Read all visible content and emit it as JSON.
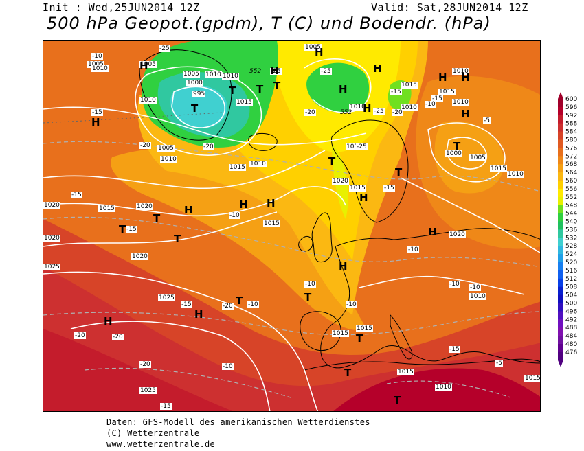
{
  "header": {
    "init": "Init : Wed,25JUN2014 12Z",
    "valid": "Valid: Sat,28JUN2014 12Z",
    "title": "500 hPa Geopot.(gpdm), T (C) und Bodendr. (hPa)"
  },
  "legend": {
    "values": [
      "600",
      "596",
      "592",
      "588",
      "584",
      "580",
      "576",
      "572",
      "568",
      "564",
      "560",
      "556",
      "552",
      "548",
      "544",
      "540",
      "536",
      "532",
      "528",
      "524",
      "520",
      "516",
      "512",
      "508",
      "504",
      "500",
      "496",
      "492",
      "488",
      "484",
      "480",
      "476"
    ],
    "colors": [
      "#a0002a",
      "#b5002a",
      "#c41c2c",
      "#cd3030",
      "#d74428",
      "#e05a22",
      "#e8701c",
      "#ef8818",
      "#f5a014",
      "#fbb812",
      "#ffd000",
      "#ffea00",
      "#e8f000",
      "#70e020",
      "#30d040",
      "#20c060",
      "#30c8a0",
      "#40d0d0",
      "#30b8e0",
      "#20a0e8",
      "#1880f0",
      "#1060f0",
      "#0840e8",
      "#0820d0",
      "#1010c0",
      "#3010c0",
      "#5010c0",
      "#7010c0",
      "#8010b0",
      "#7010a0",
      "#600090",
      "#500080"
    ]
  },
  "map": {
    "pressure_labels": [
      "1005",
      "1005",
      "1010",
      "1010",
      "1005",
      "1000",
      "995",
      "1010",
      "1015",
      "1010",
      "1005",
      "1010",
      "1005",
      "1010",
      "1010",
      "1010",
      "1015",
      "1010",
      "1015",
      "1020",
      "1015",
      "1010",
      "1020",
      "1015",
      "1020",
      "1015",
      "1020",
      "1020",
      "1025",
      "1025",
      "1025",
      "1015",
      "1015",
      "1015",
      "1010",
      "1010",
      "1015",
      "1000",
      "1005",
      "1015",
      "1010",
      "1020",
      "1010",
      "1015"
    ],
    "temp_labels": [
      "-10",
      "-15",
      "-20",
      "-25",
      "-25",
      "-25",
      "-25",
      "-20",
      "-15",
      "-20",
      "-15",
      "-15",
      "-15",
      "-20",
      "-20",
      "-20",
      "-20",
      "-15",
      "-10",
      "-10",
      "-10",
      "-10",
      "-10",
      "-10",
      "-10",
      "-10",
      "-15",
      "-15",
      "-10",
      "-5",
      "-5",
      "-15",
      "-25",
      "-20"
    ],
    "gpdm_labels": [
      "552",
      "552"
    ],
    "high_markers": [
      "H",
      "H",
      "H",
      "H",
      "H",
      "H",
      "H",
      "H",
      "H",
      "H",
      "H",
      "H",
      "H",
      "H",
      "H",
      "H",
      "H",
      "H"
    ],
    "low_markers": [
      "T",
      "T",
      "T",
      "T",
      "T",
      "T",
      "T",
      "T",
      "T",
      "T",
      "T",
      "T",
      "T",
      "T",
      "T"
    ]
  },
  "footer": {
    "line1": "Daten: GFS-Modell des amerikanischen Wetterdienstes",
    "line2": "(C) Wetterzentrale",
    "line3": "www.wetterzentrale.de"
  },
  "colors": {
    "background_warm": "#e8701c",
    "south_deep": "#c41c2c",
    "yellow_zone": "#ffd000",
    "green_low": "#30d040",
    "cyan_low": "#40d0d0"
  }
}
